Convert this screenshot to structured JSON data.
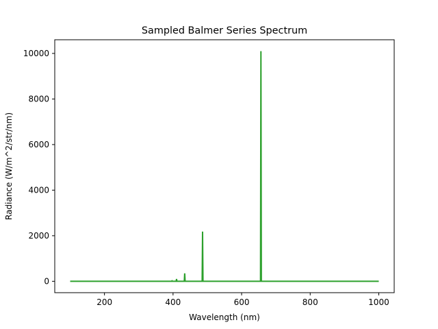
{
  "chart_data": {
    "type": "line",
    "title": "Sampled Balmer Series Spectrum",
    "xlabel": "Wavelength (nm)",
    "ylabel": "Radiance (W/m^2/str/nm)",
    "xlim": [
      55,
      1045
    ],
    "ylim": [
      -500,
      10600
    ],
    "x_ticks": [
      200,
      400,
      600,
      800,
      1000
    ],
    "y_ticks": [
      0,
      2000,
      4000,
      6000,
      8000,
      10000
    ],
    "grid": false,
    "legend": "none",
    "series": [
      {
        "color": "#2ca02c",
        "peaks": [
          {
            "x": 397.0,
            "y": 20
          },
          {
            "x": 410.2,
            "y": 100
          },
          {
            "x": 434.0,
            "y": 350
          },
          {
            "x": 486.1,
            "y": 2180
          },
          {
            "x": 656.3,
            "y": 10100
          }
        ],
        "x_range": [
          100,
          1000
        ],
        "baseline": 0
      }
    ]
  }
}
